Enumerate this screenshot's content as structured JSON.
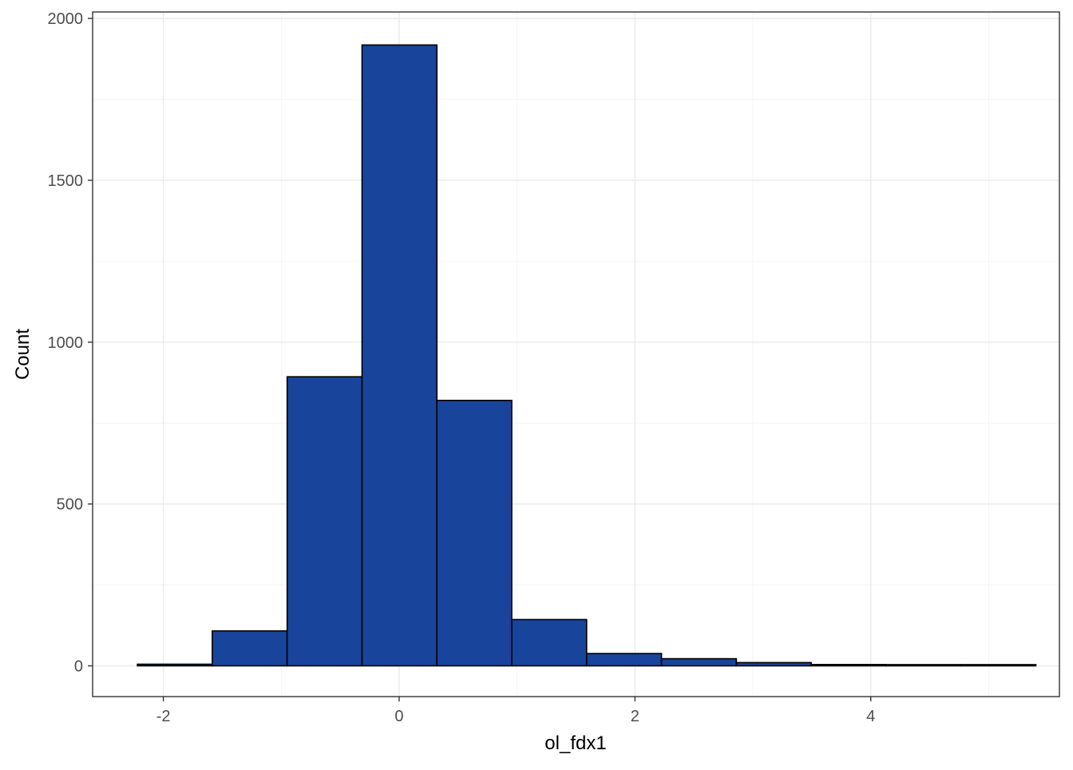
{
  "chart_data": {
    "type": "bar",
    "subtype": "histogram",
    "title": "",
    "xlabel": "ol_fdx1",
    "ylabel": "Count",
    "xlim": [
      -2.6,
      5.6
    ],
    "ylim": [
      -95,
      2020
    ],
    "x_ticks": [
      {
        "value": -2,
        "label": "-2"
      },
      {
        "value": 0,
        "label": "0"
      },
      {
        "value": 2,
        "label": "2"
      },
      {
        "value": 4,
        "label": "4"
      }
    ],
    "y_ticks": [
      {
        "value": 0,
        "label": "0"
      },
      {
        "value": 500,
        "label": "500"
      },
      {
        "value": 1000,
        "label": "1000"
      },
      {
        "value": 1500,
        "label": "1500"
      },
      {
        "value": 2000,
        "label": "2000"
      }
    ],
    "x_minor_breaks": [
      -1,
      1,
      3,
      5
    ],
    "y_minor_breaks": [
      250,
      750,
      1250,
      1750
    ],
    "bins": [
      {
        "x0": -2.22,
        "x1": -1.585,
        "count": 5
      },
      {
        "x0": -1.585,
        "x1": -0.95,
        "count": 108
      },
      {
        "x0": -0.95,
        "x1": -0.315,
        "count": 893
      },
      {
        "x0": -0.315,
        "x1": 0.32,
        "count": 1918
      },
      {
        "x0": 0.32,
        "x1": 0.955,
        "count": 820
      },
      {
        "x0": 0.955,
        "x1": 1.59,
        "count": 143
      },
      {
        "x0": 1.59,
        "x1": 2.225,
        "count": 38
      },
      {
        "x0": 2.225,
        "x1": 2.86,
        "count": 22
      },
      {
        "x0": 2.86,
        "x1": 3.495,
        "count": 10
      },
      {
        "x0": 3.495,
        "x1": 4.13,
        "count": 4
      },
      {
        "x0": 4.13,
        "x1": 4.765,
        "count": 1
      },
      {
        "x0": 4.765,
        "x1": 5.4,
        "count": 1
      }
    ],
    "fill_color": "#19449b",
    "outline_color": "#000000",
    "grid": true,
    "legend": "none"
  }
}
